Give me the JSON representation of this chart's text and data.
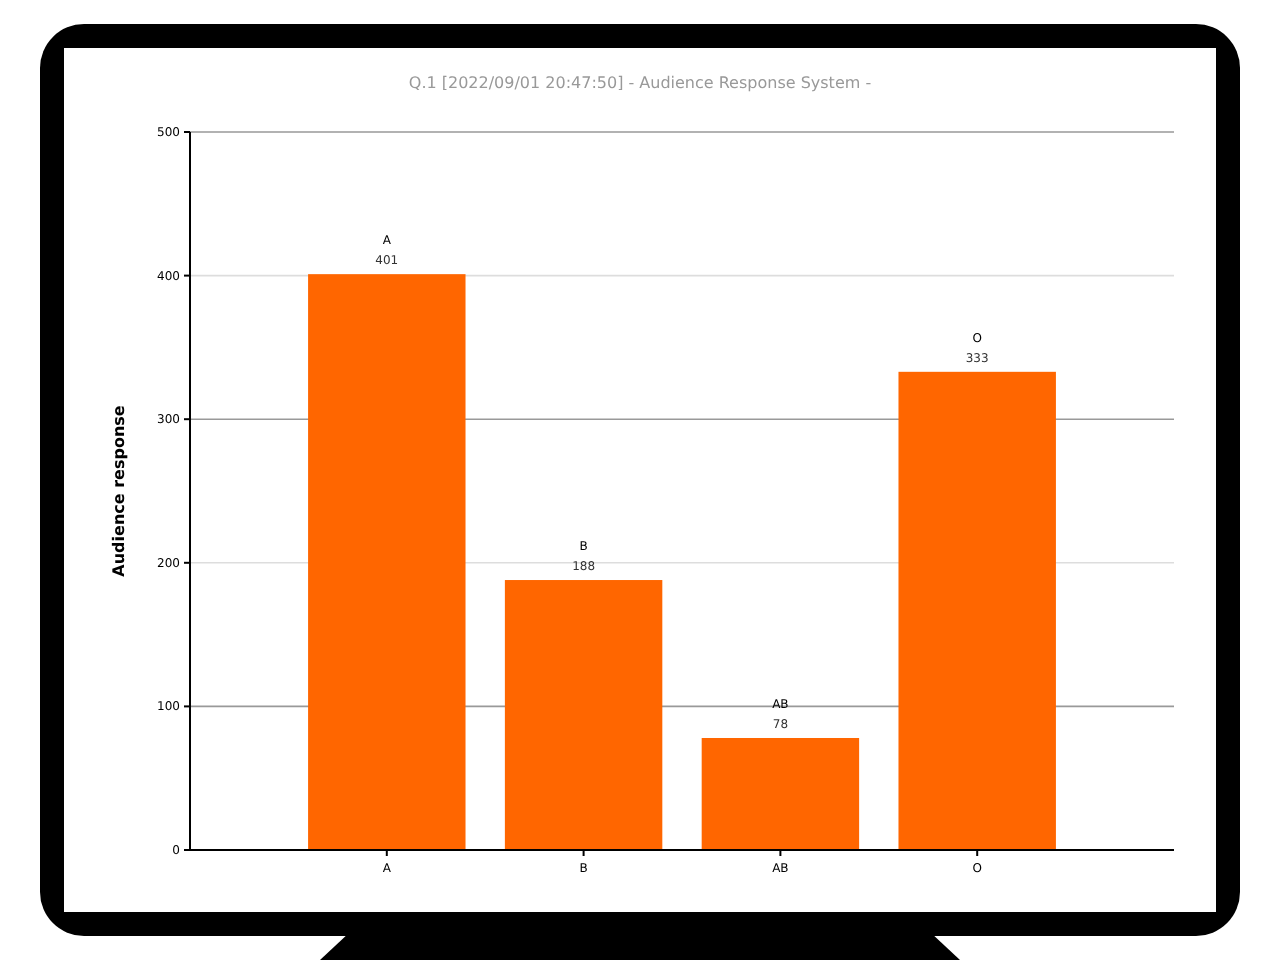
{
  "chart_data": {
    "type": "bar",
    "title": "Q.1  [2022/09/01 20:47:50]  - Audience Response System -",
    "ylabel": "Audience response",
    "categories": [
      "A",
      "B",
      "AB",
      "O"
    ],
    "values": [
      401,
      188,
      78,
      333
    ],
    "color": "#ff6600",
    "ylim": [
      0,
      500
    ],
    "yticks": [
      0,
      100,
      200,
      300,
      400,
      500
    ],
    "grid": "y",
    "data_labels": true
  }
}
